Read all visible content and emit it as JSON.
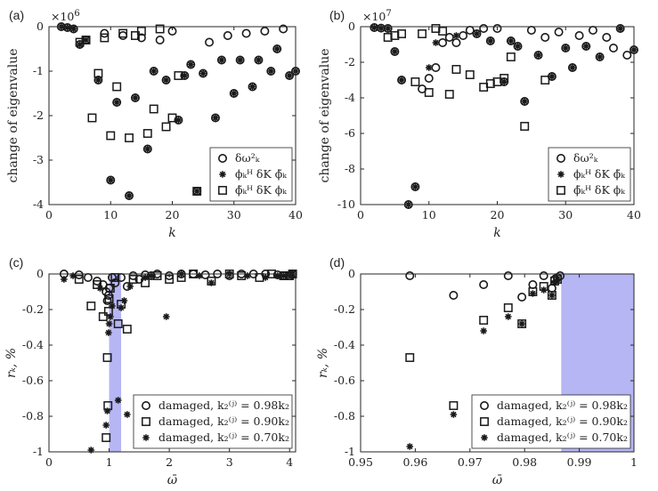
{
  "colors": {
    "band": "#b6b6f4",
    "axis": "#262626",
    "marker": "#1a1a1a"
  },
  "chart_data": [
    {
      "id": "a",
      "type": "scatter",
      "panel_label": "(a)",
      "ylabel": "change of eigenvalue",
      "xlabel": "k",
      "exponent": "×10",
      "exponent_power": "6",
      "xlim": [
        0,
        40
      ],
      "ylim": [
        -4,
        0
      ],
      "xticks": [
        "0",
        "10",
        "20",
        "30",
        "40"
      ],
      "xtick_values": [
        0,
        10,
        20,
        30,
        40
      ],
      "yticks": [
        "0",
        "-1",
        "-2",
        "-3",
        "-4"
      ],
      "ytick_values": [
        0,
        -1,
        -2,
        -3,
        -4
      ],
      "legend": [
        "δω²ₖ",
        "ϕₖᴴ δK ϕ̃ₖ",
        "ϕ̃ₖᴴ δK ϕₖ"
      ],
      "series": [
        {
          "name": "delta omega",
          "marker": "circle",
          "x": [
            2,
            3,
            4,
            5,
            6,
            8,
            9,
            10,
            11,
            12,
            13,
            14,
            15,
            16,
            17,
            18,
            19,
            20,
            21,
            22,
            23,
            24,
            25,
            26,
            27,
            28,
            29,
            30,
            31,
            32,
            33,
            34,
            35,
            36,
            37,
            38,
            39,
            40
          ],
          "y": [
            0,
            -0.02,
            -0.05,
            -0.4,
            -0.3,
            -1.2,
            -0.15,
            -3.45,
            -1.7,
            -0.2,
            -3.8,
            -1.6,
            -0.25,
            -2.75,
            -1,
            -0.3,
            -1.2,
            -0.1,
            -2.1,
            -1.1,
            -0.85,
            -3.7,
            -1.05,
            -0.35,
            -2.05,
            -0.75,
            -0.2,
            -1.5,
            -0.75,
            -0.15,
            -1.35,
            -0.75,
            -0.1,
            -1,
            -0.5,
            -0.05,
            -1.1,
            -1
          ]
        },
        {
          "name": "phiH dK phitilde",
          "marker": "star",
          "x": [
            2,
            3,
            4,
            5,
            6,
            8,
            10,
            11,
            13,
            14,
            16,
            17,
            19,
            21,
            22,
            23,
            24,
            25,
            27,
            28,
            30,
            31,
            33,
            34,
            36,
            37,
            39,
            40
          ],
          "y": [
            0,
            -0.02,
            -0.05,
            -0.4,
            -0.3,
            -1.2,
            -3.45,
            -1.7,
            -3.8,
            -1.6,
            -2.75,
            -1,
            -1.2,
            -2.1,
            -1.1,
            -0.85,
            -3.7,
            -1.05,
            -2.05,
            -0.75,
            -1.5,
            -0.75,
            -1.35,
            -0.75,
            -1,
            -0.5,
            -1.1,
            -1
          ]
        },
        {
          "name": "phitildeH dK phi",
          "marker": "square",
          "x": [
            5,
            6,
            7,
            8,
            9,
            10,
            11,
            12,
            13,
            14,
            15,
            16,
            17,
            18,
            19,
            20,
            21,
            24
          ],
          "y": [
            -0.35,
            -0.3,
            -2.05,
            -1.05,
            -0.25,
            -2.45,
            -1.35,
            -0.15,
            -2.5,
            -0.2,
            -0.1,
            -2.4,
            -1.85,
            -0.05,
            -2.25,
            -2.05,
            -1.1,
            -3.7
          ]
        }
      ]
    },
    {
      "id": "b",
      "type": "scatter",
      "panel_label": "(b)",
      "ylabel": "change of eigenvalue",
      "xlabel": "k",
      "exponent": "×10",
      "exponent_power": "7",
      "xlim": [
        0,
        40
      ],
      "ylim": [
        -10,
        0
      ],
      "xticks": [
        "0",
        "10",
        "20",
        "30",
        "40"
      ],
      "xtick_values": [
        0,
        10,
        20,
        30,
        40
      ],
      "yticks": [
        "0",
        "-2",
        "-4",
        "-6",
        "-8",
        "-10"
      ],
      "ytick_values": [
        0,
        -2,
        -4,
        -6,
        -8,
        -10
      ],
      "legend": [
        "δω²ₖ",
        "ϕₖᴴ δK ϕ̃ₖ",
        "ϕ̃ₖᴴ δK ϕₖ"
      ],
      "series": [
        {
          "name": "delta omega",
          "marker": "circle",
          "x": [
            2,
            3,
            4,
            5,
            6,
            7,
            8,
            9,
            10,
            11,
            12,
            13,
            14,
            15,
            16,
            17,
            18,
            19,
            20,
            21,
            22,
            23,
            24,
            25,
            26,
            27,
            28,
            29,
            30,
            31,
            32,
            33,
            34,
            35,
            36,
            37,
            38,
            39,
            40
          ],
          "y": [
            -0.05,
            -0.08,
            -0.1,
            -1.4,
            -3,
            -10,
            -9,
            -3.5,
            -2.9,
            -2.3,
            -0.9,
            -0.6,
            -0.9,
            -0.5,
            -0.2,
            -0.4,
            -0.1,
            -0.8,
            -0.1,
            -3.1,
            -0.8,
            -1.1,
            -4.2,
            -0.2,
            -1.6,
            -0.6,
            -2.8,
            -0.3,
            -1.2,
            -2.3,
            -0.5,
            -1.1,
            -0.2,
            -1.7,
            -0.6,
            -1.2,
            -0.1,
            -1.6,
            -1.3
          ]
        },
        {
          "name": "phiH dK phitilde",
          "marker": "star",
          "x": [
            2,
            3,
            4,
            5,
            6,
            7,
            8,
            10,
            11,
            14,
            17,
            19,
            21,
            22,
            23,
            24,
            26,
            28,
            30,
            31,
            33,
            35,
            38,
            40
          ],
          "y": [
            -0.05,
            -0.08,
            -0.1,
            -1.4,
            -3,
            -10,
            -9,
            -2.3,
            -0.9,
            -0.5,
            -0.4,
            -0.8,
            -3.1,
            -0.8,
            -1.1,
            -4.2,
            -1.6,
            -2.8,
            -1.2,
            -2.3,
            -1.1,
            -1.7,
            -0.1,
            -1.3
          ]
        },
        {
          "name": "phitildeH dK phi",
          "marker": "square",
          "x": [
            4,
            5,
            6,
            8,
            9,
            10,
            11,
            12,
            13,
            14,
            16,
            18,
            19,
            20,
            21,
            22,
            24,
            27
          ],
          "y": [
            -0.6,
            -0.5,
            -0.4,
            -3.1,
            -0.4,
            -3.7,
            -0.1,
            -0.25,
            -3.8,
            -2.4,
            -2.7,
            -3.4,
            -3.2,
            -3.1,
            -2.9,
            -1.7,
            -5.6,
            -3.0
          ]
        }
      ]
    },
    {
      "id": "c",
      "type": "scatter",
      "panel_label": "(c)",
      "ylabel": "rₖ, %",
      "xlabel": "ω̄",
      "xlim": [
        0,
        4.1
      ],
      "ylim": [
        -1,
        0
      ],
      "xticks": [
        "0",
        "1",
        "2",
        "3",
        "4"
      ],
      "xtick_values": [
        0,
        1,
        2,
        3,
        4
      ],
      "yticks": [
        "0",
        "-0.2",
        "-0.4",
        "-0.6",
        "-0.8",
        "-1"
      ],
      "ytick_values": [
        0,
        -0.2,
        -0.4,
        -0.6,
        -0.8,
        -1
      ],
      "band": [
        1.0,
        1.2
      ],
      "legend": [
        "damaged, k₂⁽ʲ⁾ = 0.98k₂",
        "damaged, k₂⁽ʲ⁾ = 0.90k₂",
        "damaged, k₂⁽ʲ⁾ = 0.70k₂"
      ],
      "series": [
        {
          "name": "0.98",
          "marker": "circle",
          "x": [
            0.25,
            0.5,
            0.65,
            0.8,
            0.9,
            0.95,
            0.97,
            0.99,
            1.0,
            1.05,
            1.1,
            1.2,
            1.3,
            1.4,
            1.5,
            1.6,
            1.7,
            1.8,
            2.0,
            2.2,
            2.4,
            2.6,
            2.8,
            3.0,
            3.2,
            3.4,
            3.6,
            3.8,
            3.9,
            4.0,
            4.05
          ],
          "y": [
            0,
            -0.005,
            -0.02,
            -0.04,
            -0.06,
            -0.1,
            -0.15,
            -0.12,
            -0.08,
            -0.02,
            -0.05,
            -0.02,
            -0.07,
            -0.01,
            -0.03,
            -0.005,
            -0.01,
            0,
            -0.01,
            0,
            0,
            -0.005,
            0,
            -0.01,
            0,
            0,
            0,
            -0.005,
            -0.01,
            -0.01,
            0
          ]
        },
        {
          "name": "0.90",
          "marker": "square",
          "x": [
            0.5,
            0.7,
            0.8,
            0.9,
            0.95,
            0.97,
            0.98,
            0.99,
            1.0,
            1.02,
            1.1,
            1.15,
            1.2,
            1.3,
            1.4,
            1.6,
            1.8,
            2.0,
            2.2,
            2.4,
            2.7,
            3.0,
            3.2,
            3.5,
            3.7,
            3.9,
            4.0,
            4.05
          ],
          "y": [
            -0.03,
            -0.18,
            -0.06,
            -0.24,
            -0.92,
            -0.47,
            -0.74,
            -0.21,
            -0.14,
            -0.08,
            -0.02,
            -0.28,
            -0.17,
            -0.31,
            -0.03,
            -0.05,
            -0.01,
            -0.03,
            -0.02,
            0,
            -0.04,
            0,
            -0.01,
            -0.02,
            0,
            -0.01,
            -0.01,
            0
          ]
        },
        {
          "name": "0.70",
          "marker": "star",
          "x": [
            0.25,
            0.4,
            0.7,
            0.85,
            0.95,
            0.97,
            0.99,
            1.0,
            1.02,
            1.05,
            1.15,
            1.2,
            1.25,
            1.3,
            1.35,
            1.6,
            1.7,
            1.95,
            2.2,
            2.5,
            2.7,
            3.0,
            3.3,
            3.6,
            3.8,
            3.9,
            4.0,
            4.05
          ],
          "y": [
            -0.03,
            -0.01,
            -0.99,
            -0.08,
            -0.85,
            -0.77,
            -0.33,
            -0.28,
            -0.24,
            -0.18,
            -0.71,
            -0.19,
            -0.15,
            -0.79,
            -0.07,
            -0.02,
            -0.01,
            -0.24,
            0,
            -0.01,
            -0.05,
            0,
            -0.01,
            -0.02,
            -0.01,
            -0.01,
            0,
            0
          ]
        }
      ]
    },
    {
      "id": "d",
      "type": "scatter",
      "panel_label": "(d)",
      "ylabel": "rₖ, %",
      "xlabel": "ω̄",
      "xlim": [
        0.95,
        1
      ],
      "ylim": [
        -1,
        0
      ],
      "xticks": [
        "0.95",
        "0.96",
        "0.97",
        "0.98",
        "0.99",
        "1"
      ],
      "xtick_values": [
        0.95,
        0.96,
        0.97,
        0.98,
        0.99,
        1
      ],
      "yticks": [
        "0",
        "-0.2",
        "-0.4",
        "-0.6",
        "-0.8",
        "-1"
      ],
      "ytick_values": [
        0,
        -0.2,
        -0.4,
        -0.6,
        -0.8,
        -1
      ],
      "band": [
        0.9867,
        1.0
      ],
      "legend": [
        "damaged, k₂⁽ʲ⁾ = 0.98k₂",
        "damaged, k₂⁽ʲ⁾ = 0.90k₂",
        "damaged, k₂⁽ʲ⁾ = 0.70k₂"
      ],
      "series": [
        {
          "name": "0.98",
          "marker": "circle",
          "x": [
            0.959,
            0.967,
            0.9725,
            0.977,
            0.9795,
            0.9815,
            0.9835,
            0.985,
            0.9855,
            0.986,
            0.9865
          ],
          "y": [
            -0.01,
            -0.12,
            -0.06,
            -0.01,
            -0.13,
            -0.06,
            -0.01,
            -0.08,
            -0.03,
            -0.02,
            -0.01
          ]
        },
        {
          "name": "0.90",
          "marker": "square",
          "x": [
            0.959,
            0.967,
            0.9725,
            0.977,
            0.9795,
            0.9815,
            0.9835,
            0.985,
            0.9855,
            0.986
          ],
          "y": [
            -0.47,
            -0.74,
            -0.26,
            -0.19,
            -0.28,
            -0.1,
            -0.07,
            -0.12,
            -0.04,
            -0.03
          ]
        },
        {
          "name": "0.70",
          "marker": "star",
          "x": [
            0.959,
            0.967,
            0.9725,
            0.977,
            0.9795,
            0.9815,
            0.9835,
            0.985,
            0.9855,
            0.986
          ],
          "y": [
            -0.97,
            -0.79,
            -0.32,
            -0.24,
            -0.28,
            -0.11,
            -0.09,
            -0.12,
            -0.05,
            -0.03
          ]
        }
      ]
    }
  ]
}
